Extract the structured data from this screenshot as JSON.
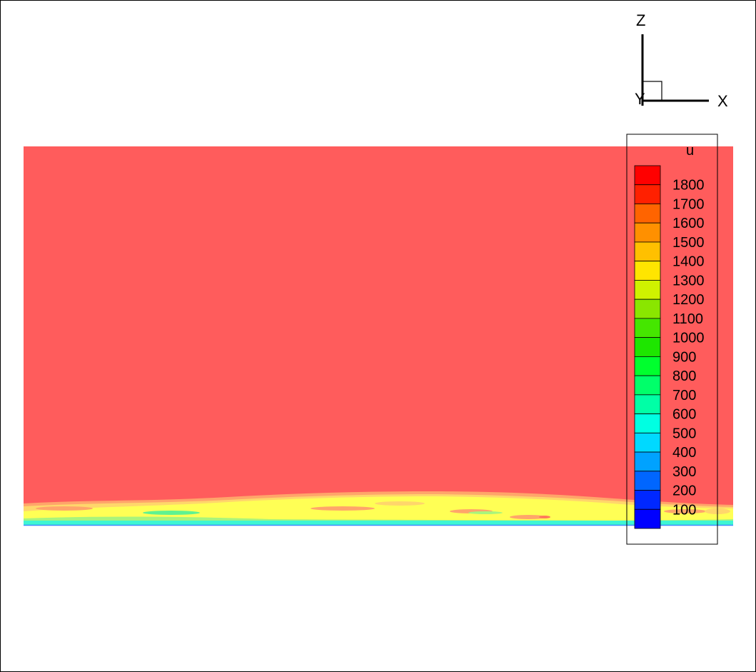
{
  "chart_data": {
    "type": "heatmap",
    "variable": "u",
    "axes": {
      "x_label": "X",
      "y_label": "Y",
      "z_label": "Z"
    },
    "legend": {
      "title": "u",
      "levels": [
        100,
        200,
        300,
        400,
        500,
        600,
        700,
        800,
        900,
        1000,
        1100,
        1200,
        1300,
        1400,
        1500,
        1600,
        1700,
        1800
      ],
      "labels": [
        "1800",
        "1700",
        "1600",
        "1500",
        "1400",
        "1300",
        "1200",
        "1100",
        "1000",
        "900",
        "800",
        "700",
        "600",
        "500",
        "400",
        "300",
        "200",
        "100"
      ],
      "colors": [
        "#0000ff",
        "#0028ff",
        "#0066ff",
        "#00a2ff",
        "#00d9ff",
        "#00ffe2",
        "#00ffa6",
        "#00ff6a",
        "#00ff2e",
        "#1ee600",
        "#45e600",
        "#8ae600",
        "#cff200",
        "#ffe500",
        "#ffc000",
        "#ff9000",
        "#ff6400",
        "#ff2000",
        "#ff0000"
      ],
      "placement": "right"
    },
    "freestream_color": "#ff5c5c",
    "boundary_layer_colors": [
      "#ffff55",
      "#ffd66b",
      "#ffa56a",
      "#a8f47c",
      "#5ff291",
      "#3ef6d3"
    ]
  }
}
